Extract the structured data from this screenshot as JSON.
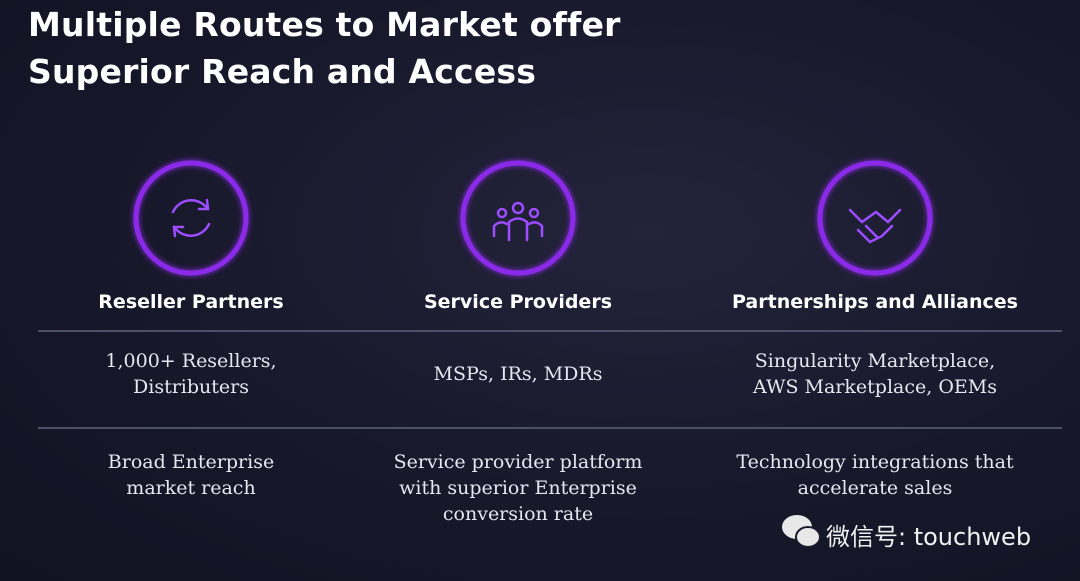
{
  "title": [
    "Multiple Routes to Market offer",
    "Superior Reach and Access"
  ],
  "columns": [
    {
      "heading": "Reseller Partners",
      "channels": [
        "1,000+ Resellers,",
        "Distributers"
      ],
      "benefit": [
        "Broad Enterprise",
        "market reach"
      ]
    },
    {
      "heading": "Service Providers",
      "channels": [
        "MSPs, IRs, MDRs"
      ],
      "benefit": [
        "Service provider platform",
        "with superior Enterprise",
        "conversion rate"
      ]
    },
    {
      "heading": "Partnerships and Alliances",
      "channels": [
        "Singularity Marketplace,",
        "AWS Marketplace, OEMs"
      ],
      "benefit": [
        "Technology integrations that",
        "accelerate sales"
      ]
    }
  ],
  "watermark": "微信号: touchweb"
}
